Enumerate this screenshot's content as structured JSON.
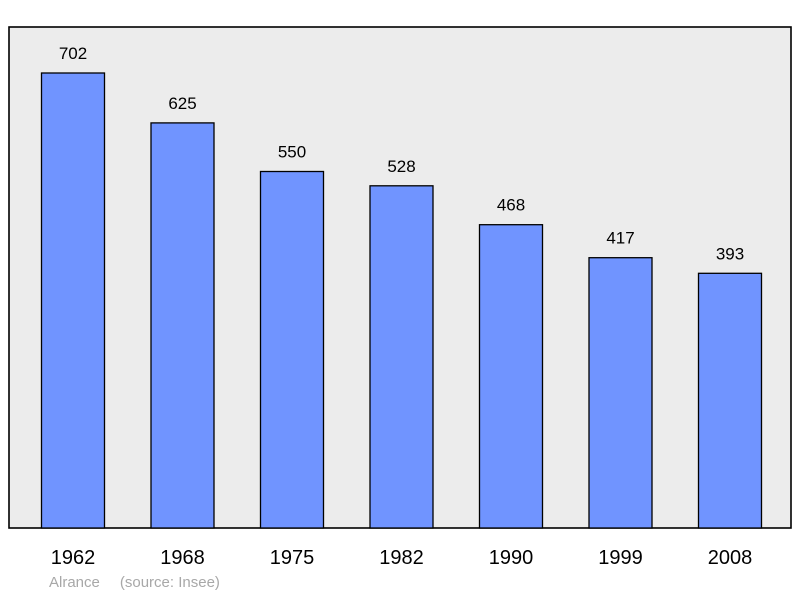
{
  "chart_data": {
    "type": "bar",
    "categories": [
      "1962",
      "1968",
      "1975",
      "1982",
      "1990",
      "1999",
      "2008"
    ],
    "values": [
      702,
      625,
      550,
      528,
      468,
      417,
      393
    ],
    "title": "",
    "xlabel": "",
    "ylabel": "",
    "ylim": [
      0,
      702
    ],
    "grid": false,
    "bar_color": "#7094ff",
    "plot_background": "#ececec",
    "axis_color": "#000000"
  },
  "caption": {
    "place": "Alrance",
    "source": "(source: Insee)"
  }
}
